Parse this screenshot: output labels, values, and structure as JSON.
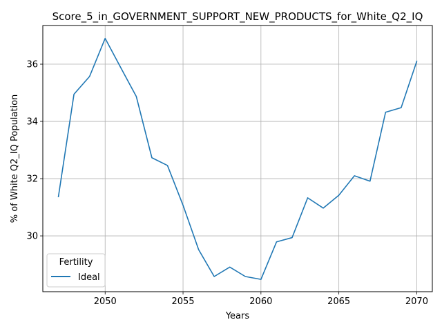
{
  "chart_data": {
    "type": "line",
    "title": "Score_5_in_GOVERNMENT_SUPPORT_NEW_PRODUCTS_for_White_Q2_IQ",
    "xlabel": "Years",
    "ylabel": "% of White Q2_IQ Population",
    "xlim": [
      2046.0,
      2071.0
    ],
    "ylim": [
      28.05,
      37.35
    ],
    "xticks": [
      2050,
      2055,
      2060,
      2065,
      2070
    ],
    "yticks": [
      30,
      32,
      34,
      36
    ],
    "grid": true,
    "legend": {
      "title": "Fertility",
      "placement": "lower-left"
    },
    "x": [
      2047,
      2048,
      2049,
      2050,
      2051,
      2052,
      2053,
      2054,
      2055,
      2056,
      2057,
      2058,
      2059,
      2060,
      2061,
      2062,
      2063,
      2064,
      2065,
      2066,
      2067,
      2068,
      2069,
      2070
    ],
    "series": [
      {
        "name": "Ideal",
        "color": "#1f77b4",
        "values": [
          31.37,
          34.95,
          35.57,
          36.9,
          35.88,
          34.87,
          32.73,
          32.46,
          31.07,
          29.52,
          28.58,
          28.91,
          28.58,
          28.48,
          29.79,
          29.94,
          31.33,
          30.97,
          31.42,
          32.1,
          31.91,
          34.32,
          34.48,
          36.1
        ]
      }
    ]
  }
}
